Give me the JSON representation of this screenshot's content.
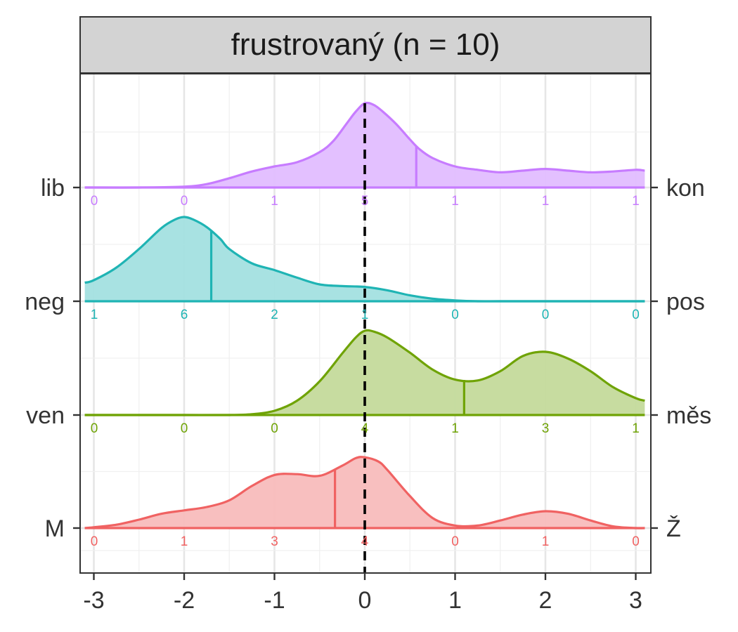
{
  "chart_data": {
    "type": "ridgeline density",
    "panel_title": "frustrovaný (n = 10)",
    "xlim": [
      -3.1,
      3.1
    ],
    "x_ticks": [
      -3,
      -2,
      -1,
      0,
      1,
      2,
      3
    ],
    "x_tick_labels": [
      "-3",
      "-2",
      "-1",
      "0",
      "1",
      "2",
      "3"
    ],
    "reference_line_x": 0,
    "grid": true,
    "count_positions": [
      -3,
      -2,
      -1,
      0,
      1,
      2,
      3
    ],
    "series": [
      {
        "left_label": "lib",
        "right_label": "kon",
        "color": "#c77cff",
        "fill": "#e2bdff",
        "mean": 0.57,
        "counts": [
          "0",
          "0",
          "1",
          "5",
          "1",
          "1",
          "1"
        ],
        "density": [
          [
            -3.1,
            0.0
          ],
          [
            -3.0,
            0.0
          ],
          [
            -2.5,
            0.0
          ],
          [
            -2.0,
            0.01
          ],
          [
            -1.75,
            0.04
          ],
          [
            -1.5,
            0.11
          ],
          [
            -1.25,
            0.19
          ],
          [
            -1.0,
            0.25
          ],
          [
            -0.75,
            0.3
          ],
          [
            -0.5,
            0.42
          ],
          [
            -0.35,
            0.55
          ],
          [
            -0.2,
            0.76
          ],
          [
            -0.1,
            0.9
          ],
          [
            0.0,
            1.0
          ],
          [
            0.1,
            0.98
          ],
          [
            0.2,
            0.9
          ],
          [
            0.35,
            0.75
          ],
          [
            0.5,
            0.57
          ],
          [
            0.6,
            0.46
          ],
          [
            0.75,
            0.35
          ],
          [
            1.0,
            0.25
          ],
          [
            1.25,
            0.21
          ],
          [
            1.5,
            0.18
          ],
          [
            1.75,
            0.2
          ],
          [
            2.0,
            0.22
          ],
          [
            2.25,
            0.2
          ],
          [
            2.5,
            0.18
          ],
          [
            2.75,
            0.19
          ],
          [
            3.0,
            0.21
          ],
          [
            3.1,
            0.2
          ]
        ]
      },
      {
        "left_label": "neg",
        "right_label": "pos",
        "color": "#1fb4b4",
        "fill": "#a3e0e0",
        "mean": -1.7,
        "counts": [
          "1",
          "6",
          "2",
          "1",
          "0",
          "0",
          "0"
        ],
        "density": [
          [
            -3.1,
            0.22
          ],
          [
            -3.0,
            0.25
          ],
          [
            -2.75,
            0.4
          ],
          [
            -2.5,
            0.62
          ],
          [
            -2.25,
            0.87
          ],
          [
            -2.1,
            0.97
          ],
          [
            -2.0,
            1.0
          ],
          [
            -1.9,
            0.97
          ],
          [
            -1.75,
            0.88
          ],
          [
            -1.6,
            0.74
          ],
          [
            -1.5,
            0.62
          ],
          [
            -1.25,
            0.45
          ],
          [
            -1.0,
            0.37
          ],
          [
            -0.75,
            0.28
          ],
          [
            -0.5,
            0.2
          ],
          [
            -0.25,
            0.18
          ],
          [
            0.0,
            0.17
          ],
          [
            0.25,
            0.13
          ],
          [
            0.5,
            0.07
          ],
          [
            0.75,
            0.03
          ],
          [
            1.0,
            0.01
          ],
          [
            1.25,
            0.0
          ],
          [
            1.5,
            0.0
          ],
          [
            2.0,
            0.0
          ],
          [
            2.5,
            0.0
          ],
          [
            3.0,
            0.0
          ],
          [
            3.1,
            0.0
          ]
        ]
      },
      {
        "left_label": "ven",
        "right_label": "měs",
        "color": "#6fa305",
        "fill": "#c4da9b",
        "mean": 1.1,
        "counts": [
          "0",
          "0",
          "0",
          "4",
          "1",
          "3",
          "1"
        ],
        "density": [
          [
            -3.1,
            0.0
          ],
          [
            -3.0,
            0.0
          ],
          [
            -2.5,
            0.0
          ],
          [
            -2.0,
            0.0
          ],
          [
            -1.5,
            0.0
          ],
          [
            -1.25,
            0.01
          ],
          [
            -1.0,
            0.05
          ],
          [
            -0.75,
            0.17
          ],
          [
            -0.5,
            0.4
          ],
          [
            -0.25,
            0.73
          ],
          [
            -0.1,
            0.92
          ],
          [
            0.0,
            1.0
          ],
          [
            0.1,
            0.99
          ],
          [
            0.25,
            0.92
          ],
          [
            0.5,
            0.74
          ],
          [
            0.75,
            0.54
          ],
          [
            1.0,
            0.42
          ],
          [
            1.25,
            0.41
          ],
          [
            1.5,
            0.52
          ],
          [
            1.75,
            0.7
          ],
          [
            2.0,
            0.75
          ],
          [
            2.25,
            0.67
          ],
          [
            2.5,
            0.52
          ],
          [
            2.75,
            0.33
          ],
          [
            3.0,
            0.2
          ],
          [
            3.1,
            0.17
          ]
        ]
      },
      {
        "left_label": "M",
        "right_label": "Ž",
        "color": "#f06262",
        "fill": "#f8bcbc",
        "mean": -0.33,
        "counts": [
          "0",
          "1",
          "3",
          "4",
          "0",
          "1",
          "0"
        ],
        "density": [
          [
            -3.1,
            0.0
          ],
          [
            -3.0,
            0.01
          ],
          [
            -2.75,
            0.04
          ],
          [
            -2.5,
            0.1
          ],
          [
            -2.25,
            0.17
          ],
          [
            -2.0,
            0.21
          ],
          [
            -1.75,
            0.25
          ],
          [
            -1.5,
            0.33
          ],
          [
            -1.25,
            0.5
          ],
          [
            -1.0,
            0.63
          ],
          [
            -0.75,
            0.64
          ],
          [
            -0.5,
            0.62
          ],
          [
            -0.25,
            0.74
          ],
          [
            -0.1,
            0.83
          ],
          [
            0.0,
            0.84
          ],
          [
            0.15,
            0.79
          ],
          [
            0.25,
            0.69
          ],
          [
            0.5,
            0.38
          ],
          [
            0.75,
            0.12
          ],
          [
            1.0,
            0.03
          ],
          [
            1.25,
            0.03
          ],
          [
            1.5,
            0.09
          ],
          [
            1.75,
            0.16
          ],
          [
            2.0,
            0.2
          ],
          [
            2.25,
            0.17
          ],
          [
            2.5,
            0.09
          ],
          [
            2.75,
            0.02
          ],
          [
            3.0,
            0.0
          ],
          [
            3.1,
            0.0
          ]
        ]
      }
    ]
  }
}
